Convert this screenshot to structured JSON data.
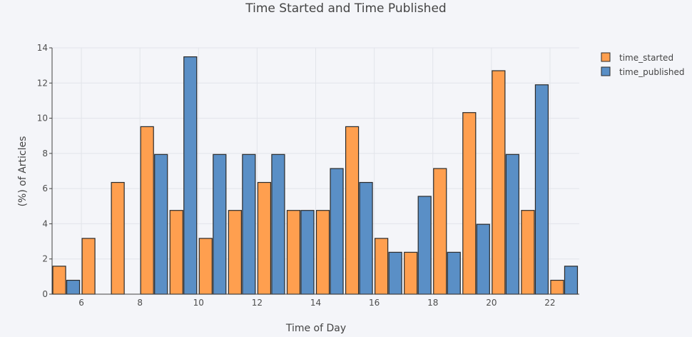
{
  "chart_data": {
    "type": "bar",
    "title": "Time Started and Time Published",
    "xlabel": "Time of Day",
    "ylabel": "(%) of Articles",
    "xlim": [
      5,
      23
    ],
    "ylim": [
      0,
      14
    ],
    "x_ticks": [
      6,
      8,
      10,
      12,
      14,
      16,
      18,
      20,
      22
    ],
    "y_ticks": [
      0,
      2,
      4,
      6,
      8,
      10,
      12,
      14
    ],
    "grid": true,
    "legend_position": "top-right",
    "x": [
      5,
      6,
      7,
      8,
      9,
      10,
      11,
      12,
      13,
      14,
      15,
      16,
      17,
      18,
      19,
      20,
      21,
      22
    ],
    "series": [
      {
        "name": "time_started",
        "color": "#ff9f4f",
        "values": [
          1.59,
          3.17,
          6.35,
          9.52,
          4.76,
          3.17,
          4.76,
          6.35,
          4.76,
          4.76,
          9.52,
          3.17,
          2.38,
          7.14,
          10.32,
          12.7,
          4.76,
          0.79
        ]
      },
      {
        "name": "time_published",
        "color": "#5a8fc6",
        "values": [
          0.79,
          0,
          0,
          7.94,
          13.49,
          7.94,
          7.94,
          7.94,
          4.76,
          7.14,
          6.35,
          2.38,
          5.56,
          2.38,
          3.97,
          7.94,
          11.9,
          1.59
        ]
      }
    ]
  }
}
